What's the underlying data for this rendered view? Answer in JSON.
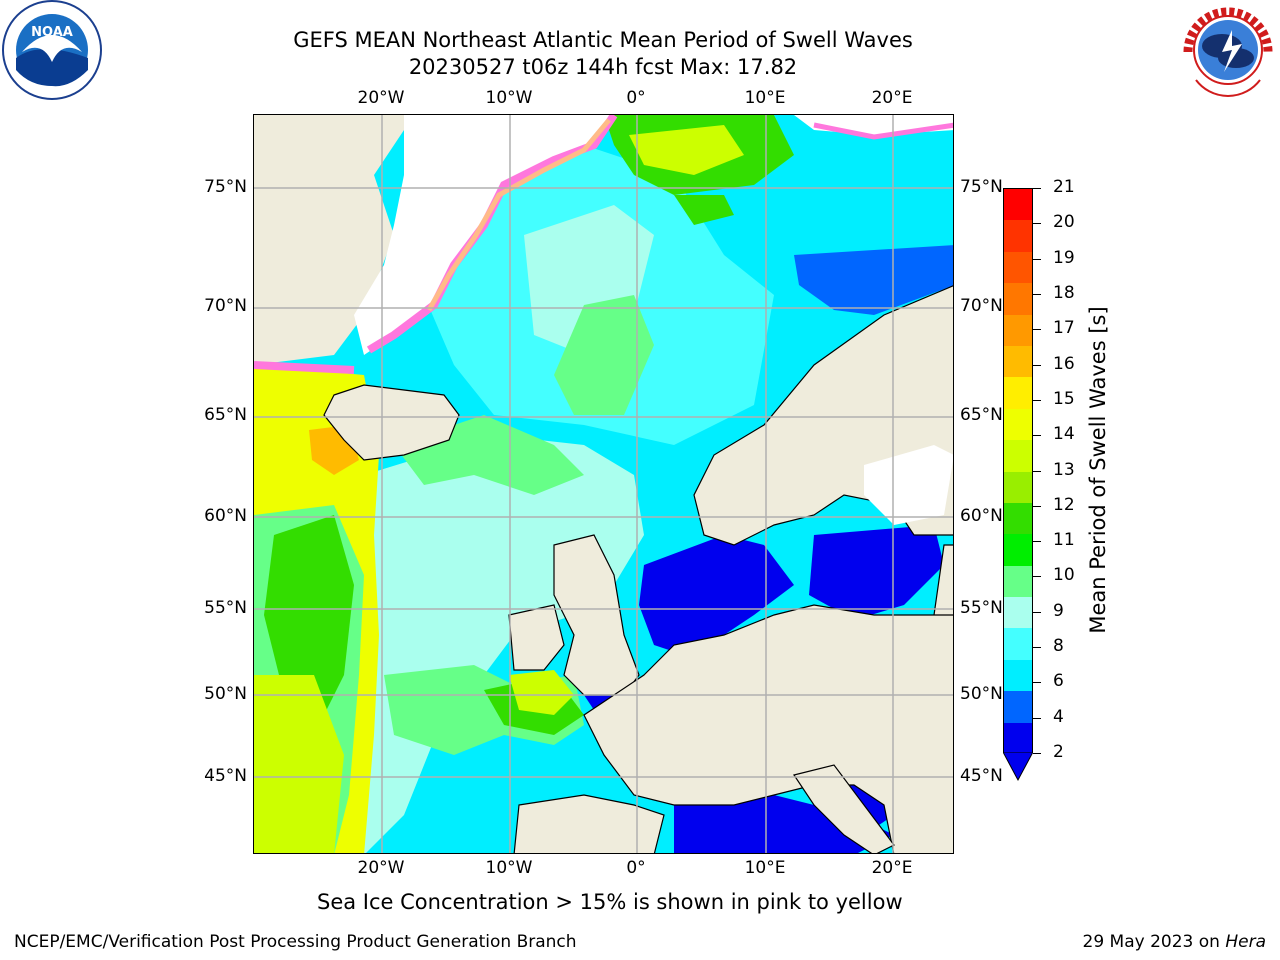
{
  "title": {
    "line1": "GEFS MEAN Northeast Atlantic Mean Period of Swell Waves",
    "line2": "20230527 t06z 144h fcst   Max: 17.82"
  },
  "logos": {
    "left": "NOAA",
    "left_ring_text": "NATIONAL OCEANIC AND ATMOSPHERIC ADMINISTRATION · U.S. DEPARTMENT OF COMMERCE",
    "right_ring_text": "NATIONAL WEATHER SERVICE"
  },
  "map": {
    "lon_labels": [
      "20°W",
      "10°W",
      "0°",
      "10°E",
      "20°E"
    ],
    "lat_labels": [
      "75°N",
      "70°N",
      "65°N",
      "60°N",
      "55°N",
      "50°N",
      "45°N"
    ],
    "colors": {
      "land": "#efecdc",
      "ice_white": "#ffffff",
      "grid": "#b0b0b0"
    }
  },
  "colorbar": {
    "label": "Mean Period of Swell Waves [s]",
    "ticks": [
      "21",
      "20",
      "19",
      "18",
      "17",
      "16",
      "15",
      "14",
      "13",
      "12",
      "11",
      "10",
      "9",
      "8",
      "6",
      "4",
      "2"
    ],
    "colors_top_to_bottom": [
      "#ff0000",
      "#ff3300",
      "#ff5500",
      "#ff7700",
      "#ff9900",
      "#ffbb00",
      "#ffee00",
      "#eeff00",
      "#ccff00",
      "#99ee00",
      "#33dd00",
      "#00ee00",
      "#66ff88",
      "#aaffee",
      "#44ffff",
      "#00eeff",
      "#0066ff",
      "#0000ee"
    ]
  },
  "caption": "Sea Ice Concentration > 15% is shown in pink to yellow",
  "footer": {
    "left": "NCEP/EMC/Verification Post Processing Product Generation Branch",
    "right_prefix": "29 May 2023 on ",
    "right_host": "Hera"
  }
}
